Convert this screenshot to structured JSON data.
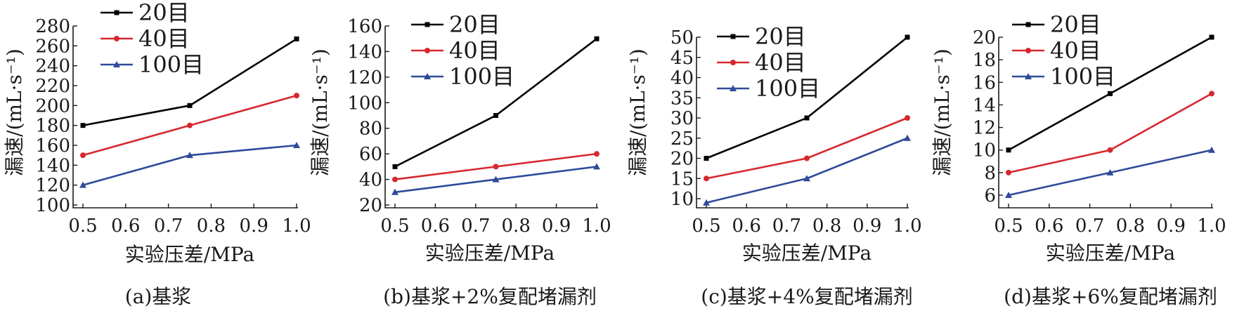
{
  "colors": {
    "20目": "#000000",
    "40目": "#d7282f",
    "100目": "#2e4a9a"
  },
  "chart_data": [
    {
      "type": "line",
      "caption": "(a)基浆",
      "xlabel": "实验压差/MPa",
      "ylabel": "漏速/(mL·s⁻¹)",
      "x": [
        0.5,
        0.75,
        1.0
      ],
      "xlim": [
        0.5,
        1.0
      ],
      "xticks": [
        "0.5",
        "0.6",
        "0.7",
        "0.8",
        "0.9",
        "1.0"
      ],
      "ylim": [
        100,
        280
      ],
      "yticks": [
        "100",
        "120",
        "140",
        "160",
        "180",
        "200",
        "220",
        "240",
        "260",
        "280"
      ],
      "legend": "top-left",
      "grid": false,
      "series": [
        {
          "name": "20目",
          "values": [
            180,
            200,
            267
          ],
          "marker": "square"
        },
        {
          "name": "40目",
          "values": [
            150,
            180,
            210
          ],
          "marker": "circle"
        },
        {
          "name": "100目",
          "values": [
            120,
            150,
            160
          ],
          "marker": "triangle"
        }
      ]
    },
    {
      "type": "line",
      "caption": "(b)基浆+2%复配堵漏剂",
      "xlabel": "实验压差/MPa",
      "ylabel": "漏速/(mL·s⁻¹)",
      "x": [
        0.5,
        0.75,
        1.0
      ],
      "xlim": [
        0.5,
        1.0
      ],
      "xticks": [
        "0.5",
        "0.6",
        "0.7",
        "0.8",
        "0.9",
        "1.0"
      ],
      "ylim": [
        20,
        160
      ],
      "yticks": [
        "20",
        "40",
        "60",
        "80",
        "100",
        "120",
        "140",
        "160"
      ],
      "legend": "top-left",
      "grid": false,
      "series": [
        {
          "name": "20目",
          "values": [
            50,
            90,
            150
          ],
          "marker": "square"
        },
        {
          "name": "40目",
          "values": [
            40,
            50,
            60
          ],
          "marker": "circle"
        },
        {
          "name": "100目",
          "values": [
            30,
            40,
            50
          ],
          "marker": "triangle"
        }
      ]
    },
    {
      "type": "line",
      "caption": "(c)基浆+4%复配堵漏剂",
      "xlabel": "实验压差/MPa",
      "ylabel": "漏速/(mL·s⁻¹)",
      "x": [
        0.5,
        0.75,
        1.0
      ],
      "xlim": [
        0.5,
        1.0
      ],
      "xticks": [
        "0.5",
        "0.6",
        "0.7",
        "0.8",
        "0.9",
        "1.0"
      ],
      "ylim": [
        8,
        50
      ],
      "yticks": [
        "10",
        "15",
        "20",
        "25",
        "30",
        "35",
        "40",
        "45",
        "50"
      ],
      "legend": "top-left",
      "grid": false,
      "series": [
        {
          "name": "20目",
          "values": [
            20,
            30,
            50
          ],
          "marker": "square"
        },
        {
          "name": "40目",
          "values": [
            15,
            20,
            30
          ],
          "marker": "circle"
        },
        {
          "name": "100目",
          "values": [
            9,
            15,
            25
          ],
          "marker": "triangle"
        }
      ]
    },
    {
      "type": "line",
      "caption": "(d)基浆+6%复配堵漏剂",
      "xlabel": "实验压差/MPa",
      "ylabel": "漏速/(mL·s⁻¹)",
      "x": [
        0.5,
        0.75,
        1.0
      ],
      "xlim": [
        0.5,
        1.0
      ],
      "xticks": [
        "0.5",
        "0.6",
        "0.7",
        "0.8",
        "0.9",
        "1.0"
      ],
      "ylim": [
        5,
        21
      ],
      "yticks": [
        "6",
        "8",
        "10",
        "12",
        "14",
        "16",
        "18",
        "20"
      ],
      "legend": "top-left",
      "grid": false,
      "series": [
        {
          "name": "20目",
          "values": [
            10,
            15,
            20
          ],
          "marker": "square"
        },
        {
          "name": "40目",
          "values": [
            8,
            10,
            15
          ],
          "marker": "circle"
        },
        {
          "name": "100目",
          "values": [
            6,
            8,
            10
          ],
          "marker": "triangle"
        }
      ]
    }
  ]
}
